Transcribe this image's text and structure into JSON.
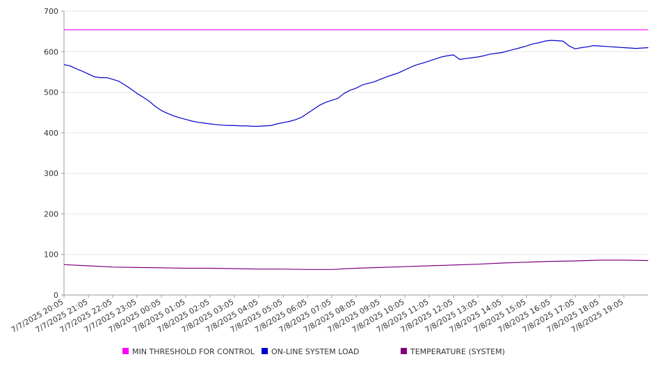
{
  "chart_data": {
    "type": "line",
    "ylim": [
      0,
      700
    ],
    "y_ticks": [
      0,
      100,
      200,
      300,
      400,
      500,
      600,
      700
    ],
    "x_tick_labels": [
      "7/7/2025 20:05",
      "7/7/2025 21:05",
      "7/7/2025 22:05",
      "7/7/2025 23:05",
      "7/8/2025 00:05",
      "7/8/2025 01:05",
      "7/8/2025 02:05",
      "7/8/2025 03:05",
      "7/8/2025 04:05",
      "7/8/2025 05:05",
      "7/8/2025 06:05",
      "7/8/2025 07:05",
      "7/8/2025 08:05",
      "7/8/2025 09:05",
      "7/8/2025 10:05",
      "7/8/2025 11:05",
      "7/8/2025 12:05",
      "7/8/2025 13:05",
      "7/8/2025 14:05",
      "7/8/2025 15:05",
      "7/8/2025 16:05",
      "7/8/2025 17:05",
      "7/8/2025 18:05",
      "7/8/2025 19:05"
    ],
    "x_range_hours": [
      0,
      24
    ],
    "grid": true,
    "legend_position": "bottom",
    "series": [
      {
        "name": "MIN THRESHOLD FOR CONTROL",
        "color": "#ff00ff",
        "x": [
          0,
          24
        ],
        "values": [
          654,
          654
        ]
      },
      {
        "name": "ON-LINE SYSTEM LOAD",
        "color": "#0000cc",
        "x": [
          0,
          0.25,
          0.5,
          0.75,
          1,
          1.25,
          1.5,
          1.75,
          2,
          2.25,
          2.5,
          2.75,
          3,
          3.25,
          3.5,
          3.75,
          4,
          4.25,
          4.5,
          4.75,
          5,
          5.25,
          5.5,
          5.75,
          6,
          6.25,
          6.5,
          6.75,
          7,
          7.25,
          7.5,
          7.75,
          8,
          8.25,
          8.5,
          8.75,
          9,
          9.25,
          9.5,
          9.75,
          10,
          10.25,
          10.5,
          10.75,
          11,
          11.25,
          11.5,
          11.75,
          12,
          12.25,
          12.5,
          12.75,
          13,
          13.25,
          13.5,
          13.75,
          14,
          14.25,
          14.5,
          14.75,
          15,
          15.25,
          15.5,
          15.75,
          16,
          16.25,
          16.5,
          16.75,
          17,
          17.25,
          17.5,
          17.75,
          18,
          18.25,
          18.5,
          18.75,
          19,
          19.25,
          19.5,
          19.75,
          20,
          20.25,
          20.5,
          20.75,
          21,
          21.25,
          21.5,
          21.75,
          22,
          22.25,
          22.5,
          22.75,
          23,
          23.25,
          23.5,
          23.75,
          24
        ],
        "values": [
          568,
          565,
          558,
          552,
          545,
          538,
          536,
          536,
          532,
          527,
          518,
          508,
          497,
          488,
          478,
          465,
          455,
          448,
          442,
          437,
          433,
          429,
          426,
          424,
          422,
          420,
          419,
          418,
          418,
          417,
          417,
          416,
          416,
          417,
          418,
          422,
          425,
          428,
          432,
          438,
          448,
          458,
          468,
          475,
          480,
          485,
          497,
          505,
          510,
          518,
          522,
          526,
          532,
          538,
          543,
          548,
          555,
          562,
          568,
          572,
          577,
          582,
          587,
          590,
          592,
          581,
          583,
          585,
          587,
          590,
          594,
          596,
          598,
          602,
          606,
          610,
          614,
          619,
          622,
          626,
          628,
          627,
          626,
          614,
          607,
          610,
          612,
          615,
          614,
          613,
          612,
          611,
          610,
          609,
          608,
          609,
          610
        ]
      },
      {
        "name": "TEMPERATURE (SYSTEM)",
        "color": "#800080",
        "x": [
          0,
          1,
          2,
          3,
          4,
          5,
          6,
          7,
          8,
          9,
          10,
          11,
          12,
          13,
          14,
          15,
          16,
          17,
          18,
          19,
          20,
          21,
          22,
          23,
          24
        ],
        "values": [
          75,
          72,
          69,
          68,
          67,
          66,
          66,
          65,
          64,
          64,
          63,
          63,
          66,
          68,
          70,
          72,
          74,
          76,
          79,
          81,
          83,
          84,
          86,
          86,
          85
        ]
      }
    ]
  }
}
